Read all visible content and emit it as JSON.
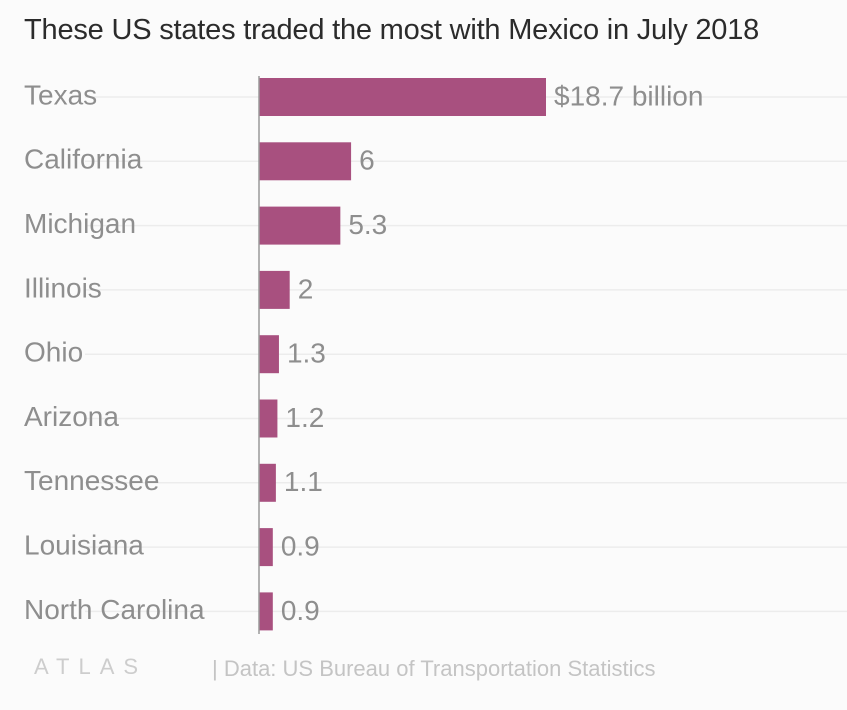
{
  "title": "These US states traded the most with Mexico in July 2018",
  "footer": {
    "logo": "ATLAS",
    "source": "| Data: US Bureau of Transportation Statistics"
  },
  "chart_data": {
    "type": "bar",
    "orientation": "horizontal",
    "title": "These US states traded the most with Mexico in July 2018",
    "categories": [
      "Texas",
      "California",
      "Michigan",
      "Illinois",
      "Ohio",
      "Arizona",
      "Tennessee",
      "Louisiana",
      "North Carolina"
    ],
    "values": [
      18.7,
      6,
      5.3,
      2,
      1.3,
      1.2,
      1.1,
      0.9,
      0.9
    ],
    "value_labels": [
      "$18.7 billion",
      "6",
      "5.3",
      "2",
      "1.3",
      "1.2",
      "1.1",
      "0.9",
      "0.9"
    ],
    "xlim": [
      0,
      18.7
    ],
    "grid": true,
    "bar_color": "#a8507f",
    "grid_color": "#ececec",
    "axis_color": "#9a9a9a"
  }
}
